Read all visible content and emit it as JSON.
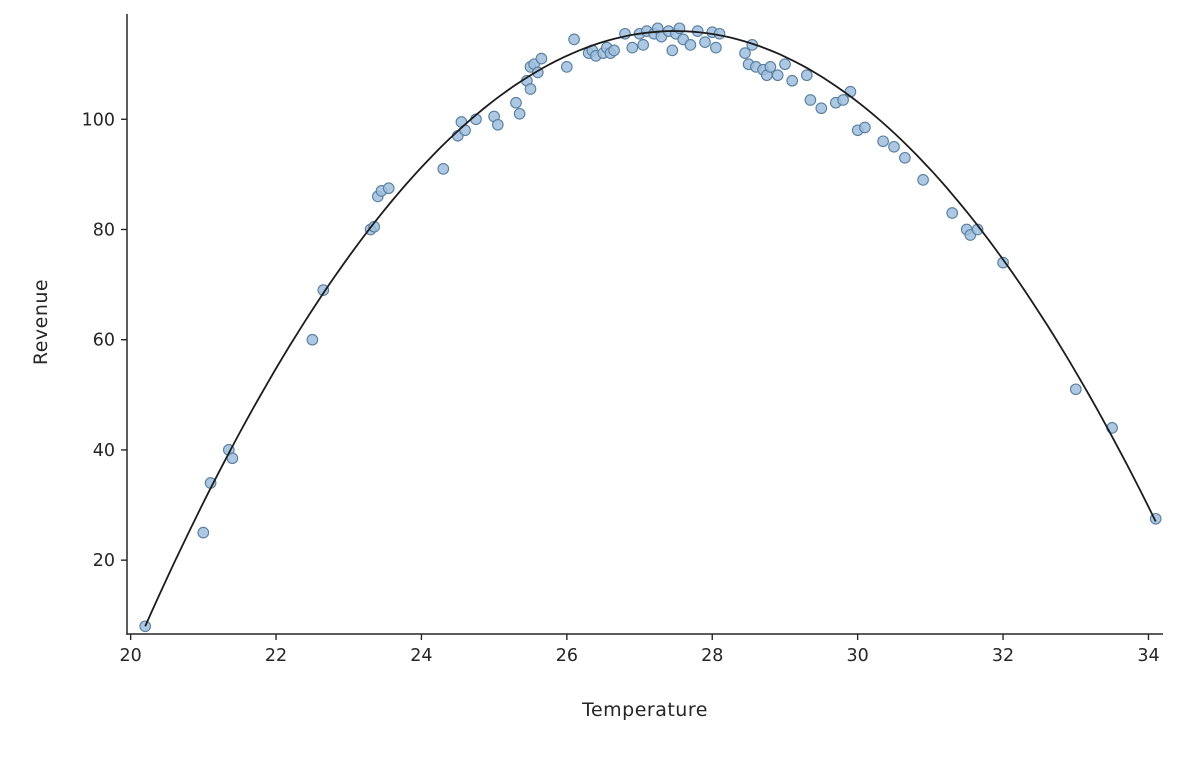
{
  "chart_data": {
    "type": "scatter",
    "title": "",
    "xlabel": "Temperature",
    "ylabel": "Revenue",
    "xlim": [
      19.95,
      34.2
    ],
    "ylim": [
      6.6,
      119.1
    ],
    "x_ticks": [
      20,
      22,
      24,
      26,
      28,
      30,
      32,
      34
    ],
    "y_ticks": [
      20,
      40,
      60,
      80,
      100
    ],
    "grid": false,
    "legend": null,
    "colors": {
      "point_fill": "#9dbedd",
      "point_edge": "#587e9f",
      "line": "#1c1c1c",
      "axis": "#262626",
      "text": "#262626",
      "background": "#ffffff"
    },
    "fit_curve": {
      "type": "quadratic",
      "a": -2.0345,
      "b": 111.84,
      "c": -1421.0,
      "x_start": 20.2,
      "x_end": 34.1
    },
    "points": [
      [
        20.2,
        8
      ],
      [
        21.0,
        25
      ],
      [
        21.1,
        34
      ],
      [
        21.35,
        40
      ],
      [
        21.4,
        38.5
      ],
      [
        22.5,
        60
      ],
      [
        22.65,
        69
      ],
      [
        23.3,
        80
      ],
      [
        23.35,
        80.5
      ],
      [
        23.4,
        86
      ],
      [
        23.45,
        87
      ],
      [
        23.55,
        87.5
      ],
      [
        24.3,
        91
      ],
      [
        24.5,
        97
      ],
      [
        24.55,
        99.5
      ],
      [
        24.6,
        98
      ],
      [
        24.75,
        100
      ],
      [
        25.0,
        100.5
      ],
      [
        25.05,
        99
      ],
      [
        25.3,
        103
      ],
      [
        25.35,
        101
      ],
      [
        25.45,
        107
      ],
      [
        25.5,
        109.5
      ],
      [
        25.5,
        105.5
      ],
      [
        25.55,
        110
      ],
      [
        25.6,
        108.5
      ],
      [
        25.65,
        111
      ],
      [
        26.0,
        109.5
      ],
      [
        26.1,
        114.5
      ],
      [
        26.3,
        112
      ],
      [
        26.35,
        112.5
      ],
      [
        26.4,
        111.5
      ],
      [
        26.5,
        112
      ],
      [
        26.55,
        113
      ],
      [
        26.6,
        112
      ],
      [
        26.65,
        112.5
      ],
      [
        26.8,
        115.5
      ],
      [
        26.9,
        113
      ],
      [
        27.0,
        115.5
      ],
      [
        27.05,
        113.5
      ],
      [
        27.1,
        116
      ],
      [
        27.2,
        115.5
      ],
      [
        27.25,
        116.5
      ],
      [
        27.3,
        115
      ],
      [
        27.4,
        116
      ],
      [
        27.45,
        112.5
      ],
      [
        27.5,
        115.5
      ],
      [
        27.55,
        116.5
      ],
      [
        27.6,
        114.5
      ],
      [
        27.7,
        113.5
      ],
      [
        27.8,
        116
      ],
      [
        27.9,
        114
      ],
      [
        28.0,
        115.8
      ],
      [
        28.05,
        113
      ],
      [
        28.1,
        115.5
      ],
      [
        28.45,
        112
      ],
      [
        28.5,
        110
      ],
      [
        28.55,
        113.5
      ],
      [
        28.6,
        109.5
      ],
      [
        28.7,
        109
      ],
      [
        28.75,
        108
      ],
      [
        28.8,
        109.5
      ],
      [
        28.9,
        108
      ],
      [
        29.0,
        110
      ],
      [
        29.1,
        107
      ],
      [
        29.3,
        108
      ],
      [
        29.35,
        103.5
      ],
      [
        29.5,
        102
      ],
      [
        29.7,
        103
      ],
      [
        29.8,
        103.5
      ],
      [
        29.9,
        105
      ],
      [
        30.0,
        98
      ],
      [
        30.1,
        98.5
      ],
      [
        30.35,
        96
      ],
      [
        30.5,
        95
      ],
      [
        30.65,
        93
      ],
      [
        30.9,
        89
      ],
      [
        31.3,
        83
      ],
      [
        31.5,
        80
      ],
      [
        31.55,
        79
      ],
      [
        31.65,
        80
      ],
      [
        32.0,
        74
      ],
      [
        33.0,
        51
      ],
      [
        33.5,
        44
      ],
      [
        34.1,
        27.5
      ]
    ]
  }
}
